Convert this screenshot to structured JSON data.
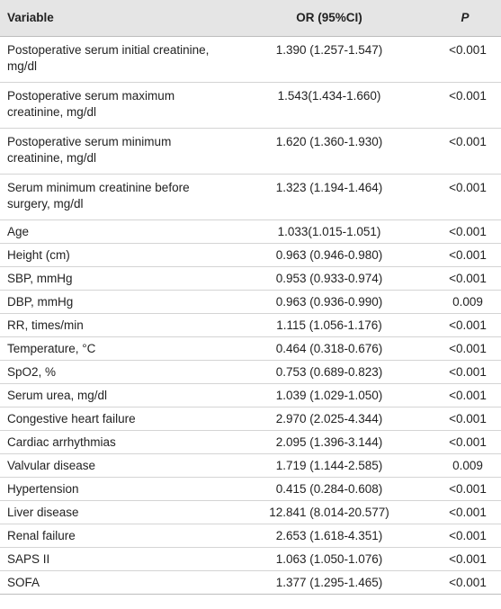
{
  "table": {
    "headers": {
      "variable": "Variable",
      "or": "OR (95%CI)",
      "p": "P"
    },
    "rows": [
      {
        "variable": "Postoperative serum initial creatinine, mg/dl",
        "or": "1.390 (1.257-1.547)",
        "p": "<0.001",
        "lines": 2
      },
      {
        "variable": "Postoperative serum maximum creatinine, mg/dl",
        "or": "1.543(1.434-1.660)",
        "p": "<0.001",
        "lines": 2
      },
      {
        "variable": "Postoperative serum minimum creatinine, mg/dl",
        "or": "1.620 (1.360-1.930)",
        "p": "<0.001",
        "lines": 2
      },
      {
        "variable": "Serum minimum creatinine before surgery, mg/dl",
        "or": "1.323 (1.194-1.464)",
        "p": "<0.001",
        "lines": 2
      },
      {
        "variable": "Age",
        "or": "1.033(1.015-1.051)",
        "p": "<0.001",
        "lines": 1
      },
      {
        "variable": "Height (cm)",
        "or": "0.963 (0.946-0.980)",
        "p": "<0.001",
        "lines": 1
      },
      {
        "variable": "SBP, mmHg",
        "or": "0.953 (0.933-0.974)",
        "p": "<0.001",
        "lines": 1
      },
      {
        "variable": "DBP, mmHg",
        "or": "0.963 (0.936-0.990)",
        "p": "0.009",
        "lines": 1
      },
      {
        "variable": "RR, times/min",
        "or": "1.115 (1.056-1.176)",
        "p": "<0.001",
        "lines": 1
      },
      {
        "variable": "Temperature, °C",
        "or": "0.464 (0.318-0.676)",
        "p": "<0.001",
        "lines": 1
      },
      {
        "variable": "SpO2, %",
        "or": "0.753 (0.689-0.823)",
        "p": "<0.001",
        "lines": 1
      },
      {
        "variable": "Serum urea, mg/dl",
        "or": "1.039 (1.029-1.050)",
        "p": "<0.001",
        "lines": 1
      },
      {
        "variable": "Congestive heart failure",
        "or": "2.970 (2.025-4.344)",
        "p": "<0.001",
        "lines": 1
      },
      {
        "variable": "Cardiac arrhythmias",
        "or": "2.095 (1.396-3.144)",
        "p": "<0.001",
        "lines": 1
      },
      {
        "variable": "Valvular disease",
        "or": "1.719 (1.144-2.585)",
        "p": "0.009",
        "lines": 1
      },
      {
        "variable": "Hypertension",
        "or": "0.415 (0.284-0.608)",
        "p": "<0.001",
        "lines": 1
      },
      {
        "variable": "Liver disease",
        "or": "12.841 (8.014-20.577)",
        "p": "<0.001",
        "lines": 1
      },
      {
        "variable": "Renal failure",
        "or": "2.653 (1.618-4.351)",
        "p": "<0.001",
        "lines": 1
      },
      {
        "variable": "SAPS II",
        "or": "1.063 (1.050-1.076)",
        "p": "<0.001",
        "lines": 1
      },
      {
        "variable": "SOFA",
        "or": "1.377 (1.295-1.465)",
        "p": "<0.001",
        "lines": 1
      }
    ]
  }
}
